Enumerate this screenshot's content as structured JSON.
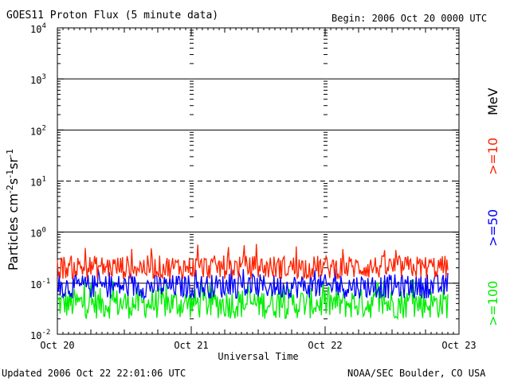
{
  "header": {
    "title": "GOES11 Proton Flux (5 minute data)",
    "begin": "Begin: 2006 Oct 20 0000 UTC"
  },
  "footer": {
    "updated": "Updated 2006 Oct 22 22:01:06 UTC",
    "credit": "NOAA/SEC Boulder, CO USA"
  },
  "chart_data": {
    "type": "line",
    "title": "GOES11 Proton Flux (5 minute data)",
    "xlabel": "Universal Time",
    "ylabel": "Particles cm-2 s-1 sr-1",
    "yscale": "log",
    "ylim": [
      0.01,
      10000
    ],
    "xlim": [
      "2006-10-20",
      "2006-10-23"
    ],
    "x_ticks": [
      "Oct 20",
      "Oct 21",
      "Oct 22",
      "Oct 23"
    ],
    "y_ticks": [
      {
        "base": "10",
        "exp": "4"
      },
      {
        "base": "10",
        "exp": "3"
      },
      {
        "base": "10",
        "exp": "2"
      },
      {
        "base": "10",
        "exp": "1"
      },
      {
        "base": "10",
        "exp": "0"
      },
      {
        "base": "10",
        "exp": "-1"
      },
      {
        "base": "10",
        "exp": "-2"
      }
    ],
    "reference_lines": [
      {
        "value": 1000,
        "style": "solid"
      },
      {
        "value": 100,
        "style": "solid"
      },
      {
        "value": 10,
        "style": "dashed"
      },
      {
        "value": 1,
        "style": "solid"
      },
      {
        "value": 0.1,
        "style": "solid"
      }
    ],
    "legend_unit": "MeV",
    "series": [
      {
        "name": ">=10",
        "color": "#ff2200",
        "typical_range": [
          0.12,
          0.35
        ],
        "peak": 0.6
      },
      {
        "name": ">=50",
        "color": "#0000ff",
        "typical_range": [
          0.05,
          0.15
        ],
        "peak": 0.2
      },
      {
        "name": ">=100",
        "color": "#00ee00",
        "typical_range": [
          0.02,
          0.08
        ],
        "peak": 0.12
      }
    ],
    "x_end_data": "2006-10-22T22:00",
    "grid": false
  }
}
